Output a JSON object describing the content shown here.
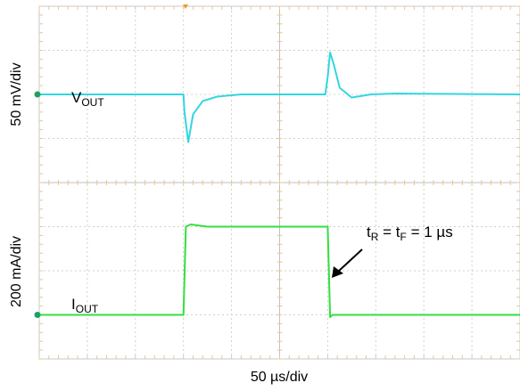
{
  "chart_data": {
    "type": "line",
    "xlabel": "50 µs/div",
    "grid": true,
    "axes": {
      "x_divisions": 10,
      "y_divisions": 8,
      "x_range_div": [
        0,
        10
      ],
      "y_range_div": [
        -4,
        4
      ]
    },
    "channels": [
      {
        "name_main": "V",
        "name_sub": "OUT",
        "ylabel": "50 mV/div",
        "color": "#33d6e0",
        "baseline_div": 2.0,
        "x_div": [
          0,
          3.0,
          3.02,
          3.1,
          3.2,
          3.4,
          3.7,
          4.2,
          5.95,
          6.0,
          6.05,
          6.12,
          6.25,
          6.5,
          6.9,
          7.4,
          10
        ],
        "y_div": [
          2.0,
          2.0,
          1.6,
          0.92,
          1.55,
          1.85,
          1.95,
          2.0,
          2.0,
          2.4,
          2.95,
          2.7,
          2.15,
          1.93,
          2.0,
          2.02,
          2.0
        ]
      },
      {
        "name_main": "I",
        "name_sub": "OUT",
        "ylabel": "200 mA/div",
        "color": "#33e040",
        "baseline_div": -3.0,
        "x_div": [
          0,
          3.0,
          3.05,
          3.15,
          3.5,
          6.0,
          6.05,
          6.1,
          10
        ],
        "y_div": [
          -3.0,
          -3.0,
          -1.0,
          -0.95,
          -1.0,
          -1.0,
          -3.05,
          -3.0,
          -3.0
        ]
      }
    ],
    "annotation": {
      "main1": "t",
      "sub1": "R",
      "eq1": " = t",
      "sub2": "F",
      "eq2": " = 1 µs"
    },
    "trigger_color": "#e8a020",
    "ground_marker_color": "#20a060"
  }
}
